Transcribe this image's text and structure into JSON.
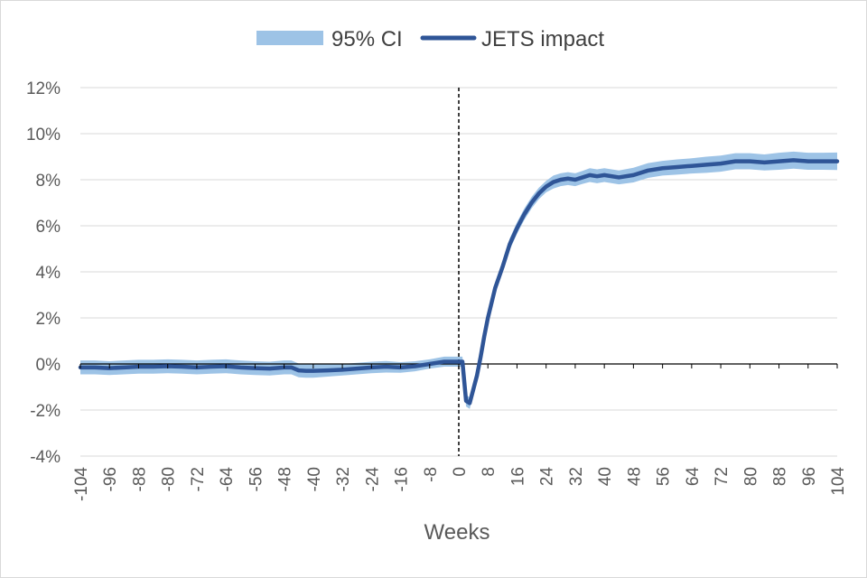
{
  "chart_data": {
    "type": "line",
    "title": "",
    "xlabel": "Weeks",
    "ylabel": "",
    "xlim": [
      -104,
      104
    ],
    "ylim": [
      -4,
      12
    ],
    "y_ticks": [
      "-4%",
      "-2%",
      "0%",
      "2%",
      "4%",
      "6%",
      "8%",
      "10%",
      "12%"
    ],
    "x_ticks": [
      "-104",
      "-96",
      "-88",
      "-80",
      "-72",
      "-64",
      "-56",
      "-48",
      "-40",
      "-32",
      "-24",
      "-16",
      "-8",
      "0",
      "8",
      "16",
      "24",
      "32",
      "40",
      "48",
      "56",
      "64",
      "72",
      "80",
      "88",
      "96",
      "104"
    ],
    "grid": true,
    "legend_position": "top",
    "reference_line_x": 0,
    "colors": {
      "ci": "#9dc3e6",
      "line": "#2f5597",
      "grid": "#d9d9d9",
      "axis": "#000000"
    },
    "series": [
      {
        "name": "JETS impact",
        "x": [
          -104,
          -100,
          -96,
          -92,
          -88,
          -84,
          -80,
          -76,
          -72,
          -68,
          -64,
          -60,
          -56,
          -52,
          -48,
          -46,
          -44,
          -42,
          -40,
          -36,
          -32,
          -28,
          -24,
          -20,
          -16,
          -12,
          -8,
          -4,
          0,
          1,
          2,
          3,
          4,
          5,
          6,
          7,
          8,
          10,
          12,
          14,
          16,
          18,
          20,
          22,
          24,
          26,
          28,
          30,
          32,
          34,
          36,
          38,
          40,
          44,
          48,
          52,
          56,
          60,
          64,
          68,
          72,
          76,
          80,
          84,
          88,
          92,
          96,
          100,
          104
        ],
        "values": [
          -0.15,
          -0.15,
          -0.18,
          -0.15,
          -0.12,
          -0.12,
          -0.1,
          -0.12,
          -0.15,
          -0.12,
          -0.1,
          -0.15,
          -0.18,
          -0.2,
          -0.15,
          -0.15,
          -0.28,
          -0.3,
          -0.3,
          -0.28,
          -0.25,
          -0.2,
          -0.15,
          -0.12,
          -0.15,
          -0.1,
          0.0,
          0.1,
          0.1,
          0.1,
          -1.6,
          -1.7,
          -1.1,
          -0.5,
          0.3,
          1.2,
          2.0,
          3.3,
          4.2,
          5.2,
          5.9,
          6.5,
          7.0,
          7.4,
          7.7,
          7.9,
          8.0,
          8.05,
          8.0,
          8.1,
          8.2,
          8.15,
          8.2,
          8.1,
          8.2,
          8.4,
          8.5,
          8.55,
          8.6,
          8.65,
          8.7,
          8.8,
          8.8,
          8.75,
          8.8,
          8.85,
          8.8,
          8.8,
          8.8
        ]
      },
      {
        "name": "95% CI",
        "x": [
          -104,
          -100,
          -96,
          -92,
          -88,
          -84,
          -80,
          -76,
          -72,
          -68,
          -64,
          -60,
          -56,
          -52,
          -48,
          -46,
          -44,
          -42,
          -40,
          -36,
          -32,
          -28,
          -24,
          -20,
          -16,
          -12,
          -8,
          -4,
          0,
          1,
          2,
          3,
          4,
          5,
          6,
          7,
          8,
          10,
          12,
          14,
          16,
          18,
          20,
          22,
          24,
          26,
          28,
          30,
          32,
          34,
          36,
          38,
          40,
          44,
          48,
          52,
          56,
          60,
          64,
          68,
          72,
          76,
          80,
          84,
          88,
          92,
          96,
          100,
          104
        ],
        "lower": [
          -0.45,
          -0.45,
          -0.48,
          -0.45,
          -0.42,
          -0.42,
          -0.4,
          -0.42,
          -0.45,
          -0.42,
          -0.4,
          -0.45,
          -0.48,
          -0.5,
          -0.45,
          -0.45,
          -0.58,
          -0.6,
          -0.6,
          -0.55,
          -0.5,
          -0.45,
          -0.4,
          -0.37,
          -0.38,
          -0.32,
          -0.2,
          -0.12,
          -0.12,
          -0.12,
          -1.85,
          -1.95,
          -1.35,
          -0.75,
          0.05,
          0.95,
          1.75,
          3.05,
          3.95,
          4.95,
          5.65,
          6.25,
          6.75,
          7.15,
          7.45,
          7.62,
          7.72,
          7.77,
          7.72,
          7.82,
          7.9,
          7.85,
          7.9,
          7.8,
          7.88,
          8.08,
          8.18,
          8.22,
          8.27,
          8.3,
          8.35,
          8.45,
          8.45,
          8.4,
          8.43,
          8.48,
          8.43,
          8.43,
          8.42
        ],
        "upper": [
          0.15,
          0.15,
          0.12,
          0.15,
          0.18,
          0.18,
          0.2,
          0.18,
          0.15,
          0.18,
          0.2,
          0.15,
          0.12,
          0.1,
          0.15,
          0.15,
          0.02,
          0.0,
          0.0,
          0.0,
          0.0,
          0.05,
          0.1,
          0.13,
          0.08,
          0.12,
          0.2,
          0.32,
          0.32,
          0.32,
          -1.35,
          -1.45,
          -0.85,
          -0.25,
          0.55,
          1.45,
          2.25,
          3.55,
          4.45,
          5.45,
          6.15,
          6.75,
          7.25,
          7.65,
          7.95,
          8.18,
          8.28,
          8.33,
          8.28,
          8.38,
          8.5,
          8.45,
          8.5,
          8.4,
          8.52,
          8.72,
          8.82,
          8.88,
          8.93,
          9.0,
          9.05,
          9.15,
          9.15,
          9.1,
          9.17,
          9.22,
          9.17,
          9.17,
          9.18
        ]
      }
    ],
    "legend": [
      {
        "label": "95% CI",
        "kind": "band"
      },
      {
        "label": "JETS impact",
        "kind": "line"
      }
    ]
  }
}
